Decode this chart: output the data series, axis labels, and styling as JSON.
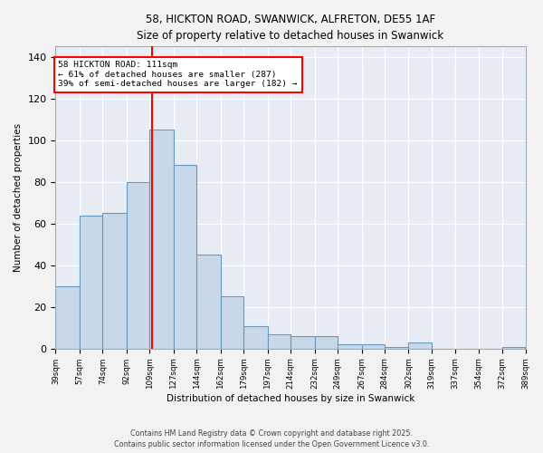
{
  "title_line1": "58, HICKTON ROAD, SWANWICK, ALFRETON, DE55 1AF",
  "title_line2": "Size of property relative to detached houses in Swanwick",
  "xlabel": "Distribution of detached houses by size in Swanwick",
  "ylabel": "Number of detached properties",
  "bar_color": "#c8d8e8",
  "bar_edge_color": "#6699bb",
  "background_color": "#e8edf5",
  "grid_color": "#ffffff",
  "annotation_text": "58 HICKTON ROAD: 111sqm\n← 61% of detached houses are smaller (287)\n39% of semi-detached houses are larger (182) →",
  "vline_x": 111,
  "vline_color": "red",
  "footer_line1": "Contains HM Land Registry data © Crown copyright and database right 2025.",
  "footer_line2": "Contains public sector information licensed under the Open Government Licence v3.0.",
  "bins": [
    39,
    57,
    74,
    92,
    109,
    127,
    144,
    162,
    179,
    197,
    214,
    232,
    249,
    267,
    284,
    302,
    319,
    337,
    354,
    372,
    389
  ],
  "values": [
    30,
    64,
    65,
    80,
    105,
    88,
    45,
    25,
    11,
    7,
    6,
    6,
    2,
    2,
    1,
    3,
    0,
    0,
    0,
    1
  ],
  "ylim": [
    0,
    145
  ],
  "yticks": [
    0,
    20,
    40,
    60,
    80,
    100,
    120,
    140
  ],
  "fig_width": 6.0,
  "fig_height": 5.0,
  "dpi": 100
}
